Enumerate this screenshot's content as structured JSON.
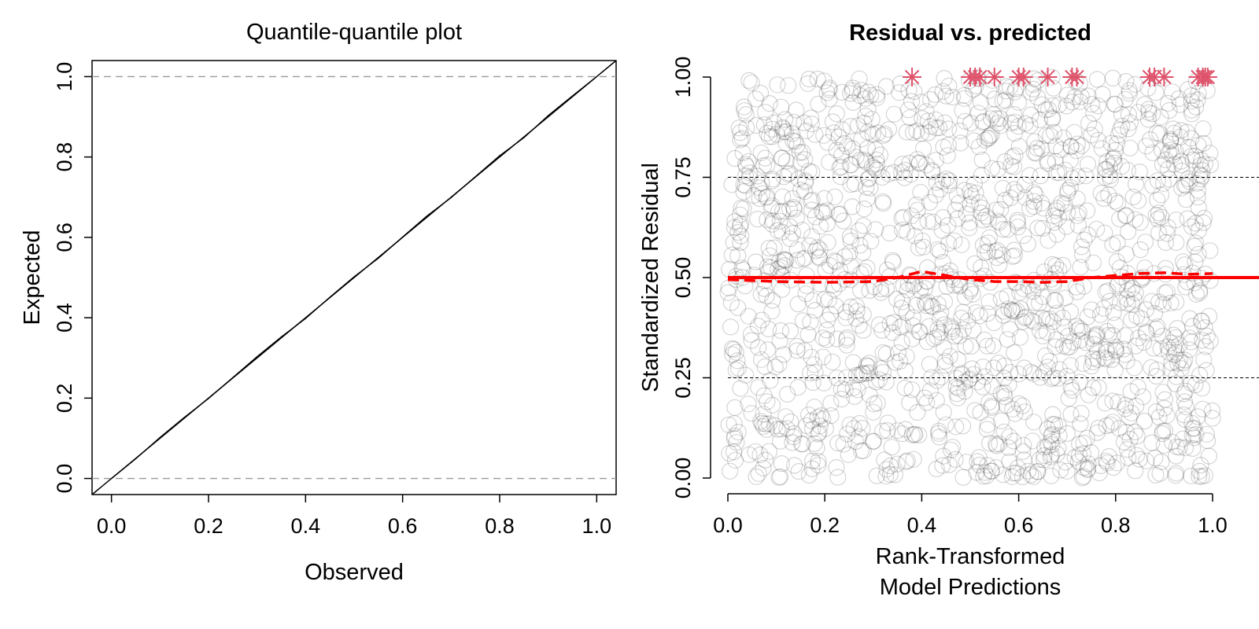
{
  "chart_data": [
    {
      "type": "line",
      "title": "Quantile-quantile plot",
      "xlabel": "Observed",
      "ylabel": "Expected",
      "xlim": [
        -0.04,
        1.04
      ],
      "ylim": [
        -0.04,
        1.04
      ],
      "x_ticks": [
        "0.0",
        "0.2",
        "0.4",
        "0.6",
        "0.8",
        "1.0"
      ],
      "y_ticks": [
        "0.0",
        "0.2",
        "0.4",
        "0.6",
        "0.8",
        "1.0"
      ],
      "reference_lines": {
        "horizontal_dashed": [
          0,
          1
        ],
        "diagonal": "y = x"
      },
      "series": [
        {
          "x": [
            0.0,
            0.05,
            0.1,
            0.15,
            0.2,
            0.25,
            0.3,
            0.35,
            0.4,
            0.45,
            0.5,
            0.55,
            0.6,
            0.65,
            0.7,
            0.75,
            0.8,
            0.85,
            0.9,
            0.95,
            1.0
          ],
          "y": [
            0.0,
            0.049,
            0.102,
            0.152,
            0.199,
            0.251,
            0.303,
            0.352,
            0.398,
            0.451,
            0.502,
            0.548,
            0.601,
            0.653,
            0.699,
            0.751,
            0.803,
            0.848,
            0.903,
            0.952,
            1.0
          ]
        }
      ],
      "grid": false
    },
    {
      "type": "scatter",
      "title": "Residual vs. predicted",
      "xlabel_lines": [
        "Rank-Transformed",
        "Model Predictions"
      ],
      "ylabel": "Standardized Residual",
      "xlim": [
        0,
        1
      ],
      "ylim": [
        0,
        1
      ],
      "x_ticks": [
        "0.0",
        "0.2",
        "0.4",
        "0.6",
        "0.8",
        "1.0"
      ],
      "y_ticks": [
        "0.00",
        "0.25",
        "0.50",
        "0.75",
        "1.00"
      ],
      "reference_lines": {
        "dashed": [
          0.25,
          0.75
        ],
        "solid_red": 0.5
      },
      "points_description": "dense uniform cloud of semi-transparent grey circles over [0,1]x[0,1]",
      "outliers": {
        "color": "#DF536B",
        "marker": "asterisk",
        "y": 1.0,
        "x": [
          0.38,
          0.5,
          0.51,
          0.52,
          0.55,
          0.6,
          0.61,
          0.66,
          0.71,
          0.72,
          0.87,
          0.88,
          0.9,
          0.97,
          0.98,
          0.985,
          0.99
        ]
      },
      "quantile_fit": {
        "color": "#FF0000",
        "style": "dashed",
        "x": [
          0.0,
          0.1,
          0.2,
          0.3,
          0.35,
          0.4,
          0.45,
          0.5,
          0.55,
          0.6,
          0.65,
          0.7,
          0.75,
          0.8,
          0.85,
          0.9,
          0.95,
          1.0
        ],
        "y": [
          0.495,
          0.49,
          0.488,
          0.49,
          0.5,
          0.515,
          0.505,
          0.495,
          0.49,
          0.49,
          0.488,
          0.49,
          0.5,
          0.505,
          0.51,
          0.512,
          0.508,
          0.51
        ]
      },
      "grid": false
    }
  ]
}
